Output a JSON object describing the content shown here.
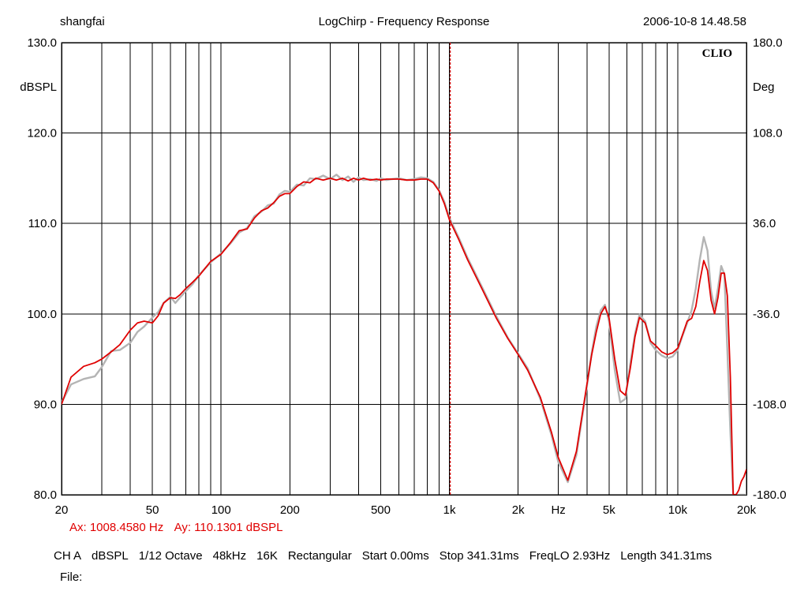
{
  "header": {
    "left": "shangfai",
    "center": "LogChirp - Frequency Response",
    "right": "2006-10-8 14.48.58"
  },
  "brand": "CLIO",
  "cursor": {
    "ax": "Ax: 1008.4580 Hz",
    "ay": "Ay: 110.1301 dBSPL"
  },
  "footer": {
    "items": [
      "CH A",
      "dBSPL",
      "1/12 Octave",
      "48kHz",
      "16K",
      "Rectangular",
      "Start 0.00ms",
      "Stop 341.31ms",
      "FreqLO 2.93Hz",
      "Length 341.31ms"
    ],
    "file_label": "File:"
  },
  "colors": {
    "primary_trace": "#e00000",
    "reference_trace": "#b4b4b4",
    "cursor": "#cc0000",
    "grid": "#000000"
  },
  "chart_data": {
    "type": "line",
    "title": "LogChirp - Frequency Response",
    "x_scale": "log",
    "xlim": [
      20,
      20000
    ],
    "ylim": [
      80,
      130
    ],
    "ylabel": "dBSPL",
    "y2lim": [
      -180,
      180
    ],
    "y2label": "Deg",
    "xlabel": "Hz",
    "x_tick_labels": [
      "20",
      "50",
      "100",
      "200",
      "500",
      "1k",
      "2k",
      "Hz",
      "5k",
      "10k",
      "20k"
    ],
    "x_tick_values": [
      20,
      50,
      100,
      200,
      500,
      1000,
      2000,
      null,
      5000,
      10000,
      20000
    ],
    "y_ticks": [
      80,
      90,
      100,
      110,
      120,
      130
    ],
    "y_tick_labels": [
      "80.0",
      "90.0",
      "100.0",
      "110.0",
      "120.0",
      "130.0"
    ],
    "y2_ticks": [
      -180,
      -108,
      -36,
      36,
      108,
      180
    ],
    "y2_tick_labels": [
      "-180.0",
      "-108.0",
      "-36.0",
      "36.0",
      "108.0",
      "180.0"
    ],
    "grid": true,
    "cursor_x": 1008.458,
    "series": [
      {
        "color": "#e00000",
        "x": [
          20,
          22,
          25,
          28,
          30,
          33,
          36,
          40,
          43,
          46,
          50,
          53,
          56,
          60,
          63,
          66,
          70,
          75,
          80,
          90,
          100,
          110,
          120,
          130,
          140,
          150,
          160,
          170,
          180,
          190,
          200,
          215,
          230,
          245,
          260,
          280,
          300,
          320,
          340,
          360,
          380,
          400,
          420,
          450,
          480,
          500,
          530,
          560,
          600,
          650,
          700,
          750,
          800,
          850,
          900,
          950,
          1000,
          1100,
          1200,
          1400,
          1600,
          1800,
          2000,
          2200,
          2500,
          2800,
          3000,
          3300,
          3600,
          4000,
          4200,
          4400,
          4600,
          4800,
          5000,
          5300,
          5600,
          5900,
          6200,
          6500,
          6800,
          7200,
          7600,
          8000,
          8500,
          9000,
          9500,
          10000,
          10500,
          11000,
          11500,
          12000,
          12500,
          13000,
          13500,
          14000,
          14500,
          15000,
          15500,
          16000,
          16500,
          17000,
          17500,
          18000,
          18500,
          19000,
          19500,
          20000
        ],
        "y": [
          90.0,
          93.0,
          94.2,
          94.6,
          95.0,
          95.8,
          96.6,
          98.2,
          99.0,
          99.2,
          99.0,
          99.8,
          101.2,
          101.8,
          101.7,
          102.1,
          102.8,
          103.5,
          104.2,
          105.8,
          106.6,
          107.9,
          109.2,
          109.4,
          110.6,
          111.4,
          111.7,
          112.3,
          113.0,
          113.3,
          113.3,
          114.1,
          114.6,
          114.5,
          115.0,
          114.8,
          115.0,
          114.8,
          115.0,
          114.7,
          115.0,
          114.8,
          115.0,
          114.8,
          114.9,
          114.8,
          114.9,
          114.9,
          114.9,
          114.8,
          114.8,
          114.9,
          114.9,
          114.5,
          113.6,
          112.2,
          110.4,
          108.2,
          106.0,
          102.6,
          99.6,
          97.3,
          95.5,
          93.8,
          90.8,
          86.9,
          84.1,
          81.6,
          84.8,
          92.2,
          95.5,
          98.0,
          100.0,
          100.8,
          99.6,
          95.0,
          91.5,
          91.0,
          94.0,
          97.5,
          99.6,
          99.0,
          97.0,
          96.5,
          95.8,
          95.5,
          95.7,
          96.2,
          97.7,
          99.2,
          99.5,
          100.8,
          103.6,
          105.9,
          104.8,
          101.5,
          100.0,
          101.8,
          104.5,
          104.5,
          102.0,
          93.0,
          80.0,
          80.0,
          80.5,
          81.5,
          82.0,
          82.8
        ]
      },
      {
        "color": "#b4b4b4",
        "x": [
          20,
          22,
          25,
          28,
          30,
          33,
          36,
          40,
          43,
          46,
          50,
          53,
          56,
          60,
          63,
          66,
          70,
          75,
          80,
          90,
          100,
          110,
          120,
          130,
          140,
          150,
          160,
          170,
          180,
          190,
          200,
          215,
          230,
          245,
          260,
          280,
          300,
          320,
          340,
          360,
          380,
          400,
          420,
          450,
          480,
          500,
          530,
          560,
          600,
          650,
          700,
          750,
          800,
          850,
          900,
          950,
          1000,
          1100,
          1200,
          1400,
          1600,
          1800,
          2000,
          2200,
          2500,
          2800,
          3000,
          3300,
          3600,
          4000,
          4200,
          4400,
          4600,
          4800,
          5000,
          5300,
          5600,
          5900,
          6200,
          6500,
          6800,
          7200,
          7600,
          8000,
          8500,
          9000,
          9500,
          10000,
          10500,
          11000,
          11500,
          12000,
          12500,
          13000,
          13500,
          14000,
          14500,
          15000,
          15500,
          16000,
          16500,
          17000,
          17500,
          18000,
          18500,
          19000,
          19500,
          20000
        ],
        "y": [
          90.2,
          92.2,
          92.8,
          93.1,
          94.1,
          95.9,
          96.0,
          96.8,
          98.0,
          98.6,
          99.6,
          100.2,
          101.2,
          101.9,
          101.2,
          101.8,
          102.5,
          103.3,
          104.3,
          105.7,
          106.7,
          107.8,
          109.0,
          109.5,
          110.8,
          111.3,
          112.0,
          112.2,
          113.2,
          113.6,
          113.5,
          114.3,
          114.2,
          115.0,
          114.9,
          115.3,
          114.9,
          115.4,
          114.8,
          115.2,
          114.6,
          115.1,
          114.8,
          114.9,
          114.7,
          115.0,
          114.8,
          114.9,
          115.0,
          114.8,
          114.9,
          115.1,
          115.0,
          114.6,
          113.7,
          112.4,
          110.6,
          108.4,
          106.2,
          102.8,
          99.8,
          97.4,
          95.6,
          94.0,
          90.6,
          86.6,
          83.6,
          81.4,
          84.4,
          92.0,
          95.7,
          98.6,
          100.4,
          101.0,
          99.2,
          93.8,
          90.2,
          90.6,
          94.5,
          97.8,
          99.9,
          99.2,
          96.8,
          96.0,
          95.4,
          95.1,
          95.3,
          96.0,
          97.6,
          99.0,
          100.4,
          102.8,
          106.0,
          108.5,
          107.0,
          102.5,
          100.6,
          102.8,
          105.3,
          104.4,
          96.0,
          87.0,
          80.0,
          80.0,
          80.0,
          80.0,
          80.0,
          80.0
        ]
      }
    ]
  }
}
